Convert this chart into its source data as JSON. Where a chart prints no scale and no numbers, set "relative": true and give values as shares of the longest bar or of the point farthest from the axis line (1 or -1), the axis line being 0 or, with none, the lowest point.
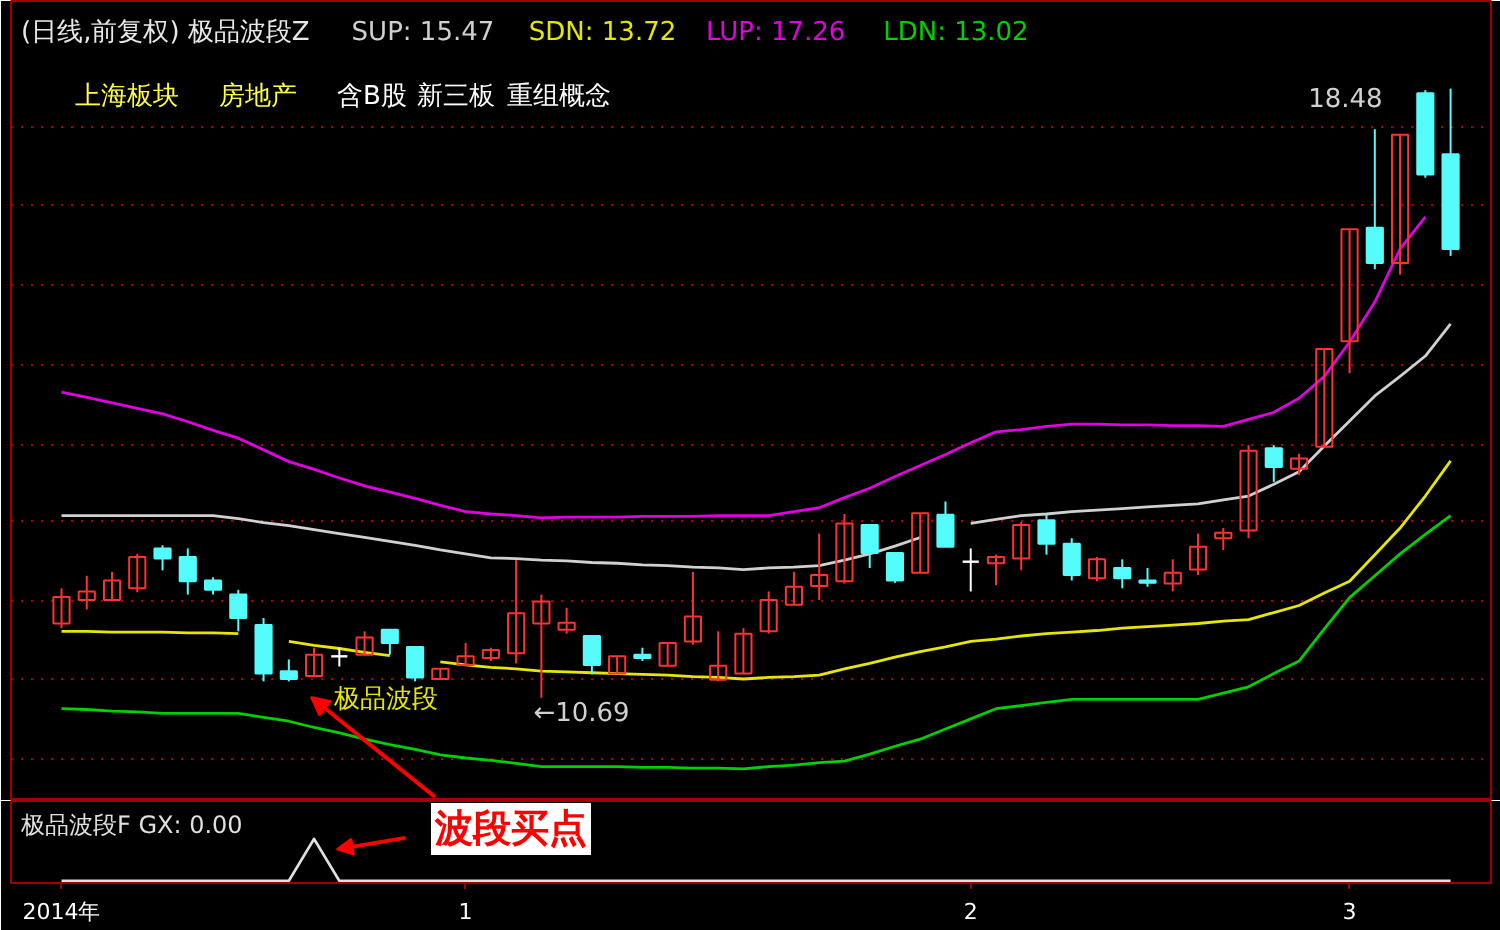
{
  "chart_data": [
    {
      "type": "candlestick",
      "title": "(日线,前复权) 极品波段Z",
      "categories": [
        null,
        null,
        null,
        null,
        null,
        null,
        null,
        null,
        null,
        null,
        null,
        null,
        null,
        null,
        null,
        null,
        null,
        null,
        null,
        null,
        null,
        null,
        null,
        null,
        null,
        null,
        null,
        null,
        null,
        null,
        null,
        null,
        null,
        null,
        null,
        null,
        null,
        null,
        null,
        null,
        null,
        null,
        null,
        null,
        null,
        null,
        null,
        null,
        null,
        null,
        null,
        null,
        null,
        null,
        null,
        null
      ],
      "ohlc": [
        [
          11.64,
          12.09,
          11.58,
          11.98
        ],
        [
          11.94,
          12.25,
          11.82,
          12.05
        ],
        [
          11.94,
          12.3,
          11.94,
          12.19
        ],
        [
          12.09,
          12.53,
          12.04,
          12.49
        ],
        [
          12.6,
          12.64,
          12.32,
          12.47
        ],
        [
          12.49,
          12.6,
          12.01,
          12.18
        ],
        [
          12.19,
          12.23,
          12.01,
          12.07
        ],
        [
          12.01,
          12.07,
          11.54,
          11.71
        ],
        [
          11.62,
          11.71,
          10.9,
          11.0
        ],
        [
          11.03,
          11.18,
          10.9,
          10.93
        ],
        [
          10.97,
          11.33,
          10.97,
          11.24
        ],
        [
          11.22,
          11.33,
          11.09,
          11.22
        ],
        [
          11.24,
          11.54,
          11.24,
          11.46
        ],
        [
          11.56,
          11.56,
          11.24,
          11.39
        ],
        [
          11.34,
          11.34,
          10.9,
          10.95
        ],
        [
          10.93,
          11.06,
          10.93,
          11.06
        ],
        [
          11.11,
          11.39,
          11.11,
          11.22
        ],
        [
          11.2,
          11.33,
          11.16,
          11.3
        ],
        [
          11.26,
          12.45,
          11.13,
          11.77
        ],
        [
          11.64,
          12.01,
          10.69,
          11.92
        ],
        [
          11.56,
          11.84,
          11.51,
          11.65
        ],
        [
          11.48,
          11.48,
          10.99,
          11.11
        ],
        [
          11.0,
          11.22,
          11.0,
          11.22
        ],
        [
          11.24,
          11.33,
          11.16,
          11.2
        ],
        [
          11.1,
          11.39,
          11.1,
          11.39
        ],
        [
          11.41,
          12.3,
          11.37,
          11.73
        ],
        [
          10.92,
          11.54,
          10.9,
          11.1
        ],
        [
          11.0,
          11.58,
          10.99,
          11.51
        ],
        [
          11.54,
          12.05,
          11.51,
          11.94
        ],
        [
          11.88,
          12.3,
          11.88,
          12.11
        ],
        [
          12.12,
          12.79,
          11.94,
          12.26
        ],
        [
          12.18,
          13.04,
          12.15,
          12.92
        ],
        [
          12.9,
          12.9,
          12.35,
          12.54
        ],
        [
          12.54,
          12.54,
          12.16,
          12.19
        ],
        [
          12.29,
          13.05,
          12.29,
          13.05
        ],
        [
          13.03,
          13.2,
          12.62,
          12.62
        ],
        [
          12.43,
          12.6,
          12.05,
          12.43
        ],
        [
          12.41,
          12.52,
          12.13,
          12.49
        ],
        [
          12.47,
          12.94,
          12.32,
          12.9
        ],
        [
          12.96,
          13.03,
          12.52,
          12.66
        ],
        [
          12.66,
          12.73,
          12.19,
          12.26
        ],
        [
          12.22,
          12.49,
          12.18,
          12.46
        ],
        [
          12.35,
          12.46,
          12.09,
          12.22
        ],
        [
          12.19,
          12.35,
          12.11,
          12.16
        ],
        [
          12.15,
          12.46,
          12.05,
          12.29
        ],
        [
          12.33,
          12.79,
          12.26,
          12.62
        ],
        [
          12.73,
          12.86,
          12.58,
          12.8
        ],
        [
          12.83,
          13.92,
          12.73,
          13.85
        ],
        [
          13.88,
          13.92,
          13.45,
          13.64
        ],
        [
          13.62,
          13.81,
          13.54,
          13.75
        ],
        [
          13.9,
          15.15,
          13.9,
          15.15
        ],
        [
          15.25,
          16.68,
          14.84,
          16.68
        ],
        [
          16.7,
          17.96,
          16.17,
          16.25
        ],
        [
          16.25,
          17.89,
          16.1,
          17.89
        ],
        [
          18.42,
          18.46,
          17.34,
          17.38
        ],
        [
          17.64,
          18.48,
          16.34,
          16.43
        ]
      ],
      "colors": [
        "#ff3232",
        "#ff3232",
        "#ff3232",
        "#ff3232",
        "#54fcfc",
        "#54fcfc",
        "#54fcfc",
        "#54fcfc",
        "#54fcfc",
        "#54fcfc",
        "#ff3232",
        "#ffffff",
        "#ff3232",
        "#54fcfc",
        "#54fcfc",
        "#ff3232",
        "#ff3232",
        "#ff3232",
        "#ff3232",
        "#ff3232",
        "#ff3232",
        "#54fcfc",
        "#ff3232",
        "#54fcfc",
        "#ff3232",
        "#ff3232",
        "#ff3232",
        "#ff3232",
        "#ff3232",
        "#ff3232",
        "#ff3232",
        "#ff3232",
        "#54fcfc",
        "#54fcfc",
        "#ff3232",
        "#54fcfc",
        "#ffffff",
        "#ff3232",
        "#ff3232",
        "#54fcfc",
        "#54fcfc",
        "#ff3232",
        "#54fcfc",
        "#54fcfc",
        "#ff3232",
        "#ff3232",
        "#ff3232",
        "#ff3232",
        "#54fcfc",
        "#ff3232",
        "#ff3232",
        "#ff3232",
        "#54fcfc",
        "#ff3232",
        "#54fcfc",
        "#54fcfc"
      ],
      "series": [
        {
          "name": "SUP: 15.47",
          "type": "line",
          "color": "#d0d0d0",
          "values": [
            13.02,
            13.02,
            13.02,
            13.02,
            13.02,
            13.02,
            13.02,
            12.98,
            12.93,
            12.89,
            12.84,
            12.79,
            12.74,
            12.69,
            12.64,
            12.58,
            12.53,
            12.48,
            12.47,
            12.45,
            12.44,
            12.42,
            12.41,
            12.39,
            12.38,
            12.36,
            12.35,
            12.33,
            12.35,
            12.36,
            12.38,
            12.45,
            12.53,
            12.63,
            12.74,
            null,
            12.92,
            12.97,
            13.02,
            13.04,
            13.07,
            13.09,
            13.11,
            13.13,
            13.15,
            13.17,
            13.22,
            13.27,
            13.42,
            13.58,
            13.91,
            14.23,
            14.55,
            14.8,
            15.06,
            15.47
          ]
        },
        {
          "name": "SDN: 13.72",
          "type": "line",
          "color": "#e6e600",
          "values": [
            11.54,
            11.54,
            11.53,
            11.53,
            11.53,
            11.52,
            11.52,
            11.51,
            null,
            11.41,
            11.36,
            11.32,
            11.27,
            11.23,
            null,
            11.15,
            11.11,
            11.08,
            11.06,
            11.03,
            11.02,
            11.01,
            11.0,
            10.99,
            10.98,
            10.96,
            10.95,
            10.93,
            10.95,
            10.96,
            10.98,
            11.06,
            11.13,
            11.21,
            11.28,
            11.34,
            11.41,
            11.44,
            11.48,
            11.51,
            11.53,
            11.55,
            11.58,
            11.6,
            11.62,
            11.64,
            11.67,
            11.69,
            11.78,
            11.87,
            12.03,
            12.18,
            12.52,
            12.86,
            13.27,
            13.72
          ]
        },
        {
          "name": "LUP: 17.26",
          "type": "line",
          "color": "#e000e0",
          "values": [
            14.6,
            14.53,
            14.46,
            14.39,
            14.32,
            14.22,
            14.11,
            14.01,
            13.86,
            13.71,
            13.61,
            13.5,
            13.4,
            13.32,
            13.24,
            13.15,
            13.07,
            13.04,
            13.02,
            12.99,
            13.0,
            13.0,
            13.0,
            13.01,
            13.01,
            13.01,
            13.02,
            13.02,
            13.02,
            13.07,
            13.12,
            13.25,
            13.37,
            13.52,
            13.66,
            13.8,
            13.95,
            14.09,
            14.12,
            14.16,
            14.19,
            14.19,
            14.18,
            14.18,
            14.17,
            14.17,
            14.16,
            14.25,
            14.34,
            14.52,
            14.8,
            15.24,
            15.75,
            16.43,
            16.84,
            null
          ]
        },
        {
          "name": "LDN: 13.02",
          "type": "line",
          "color": "#00d000",
          "values": [
            10.55,
            10.54,
            10.52,
            10.51,
            10.49,
            10.49,
            10.49,
            10.49,
            10.44,
            10.39,
            10.31,
            10.24,
            10.16,
            10.09,
            10.03,
            9.96,
            9.92,
            9.89,
            9.85,
            9.81,
            9.81,
            9.81,
            9.81,
            9.8,
            9.8,
            9.79,
            9.79,
            9.78,
            9.81,
            9.83,
            9.86,
            9.88,
            9.97,
            10.07,
            10.16,
            10.29,
            10.42,
            10.55,
            10.59,
            10.63,
            10.67,
            10.67,
            10.67,
            10.67,
            10.67,
            10.67,
            10.75,
            10.83,
            11.0,
            11.16,
            11.57,
            11.97,
            12.25,
            12.53,
            12.78,
            13.02
          ]
        }
      ],
      "legend": "top left",
      "ylim": [
        9.37,
        19.6
      ],
      "yticks": [
        {
          "value": 9.9,
          "label": null
        },
        {
          "value": 10.92,
          "label": null
        },
        {
          "value": 11.92,
          "label": null
        },
        {
          "value": 12.94,
          "label": null
        },
        {
          "value": 13.93,
          "label": null
        },
        {
          "value": 14.95,
          "label": null
        },
        {
          "value": 15.98,
          "label": null
        },
        {
          "value": 16.99,
          "label": null
        },
        {
          "value": 17.98,
          "label": null
        }
      ],
      "grid": "y",
      "tick_labels": false,
      "annotations": [
        "上海板块",
        "房地产",
        "含B股",
        "新三板",
        "重组概念",
        "18.48",
        "←10.69",
        "极品波段"
      ]
    },
    {
      "type": "line",
      "title": "极品波段F  GX: 0.00",
      "relative": true,
      "color": "#e0e0e0",
      "categories": [
        "2014年",
        null,
        null,
        null,
        null,
        null,
        null,
        null,
        null,
        null,
        null,
        null,
        null,
        null,
        null,
        null,
        "1",
        null,
        null,
        null,
        null,
        null,
        null,
        null,
        null,
        null,
        null,
        null,
        null,
        null,
        null,
        null,
        null,
        null,
        null,
        null,
        "2",
        null,
        null,
        null,
        null,
        null,
        null,
        null,
        null,
        null,
        null,
        null,
        null,
        null,
        null,
        "3",
        null,
        null,
        null,
        null
      ],
      "values": [
        0,
        0,
        0,
        0,
        0,
        0,
        0,
        0,
        0,
        0,
        1,
        0,
        0,
        0,
        0,
        0,
        0,
        0,
        0,
        0,
        0,
        0,
        0,
        0,
        0,
        0,
        0,
        0,
        0,
        0,
        0,
        0,
        0,
        0,
        0,
        0,
        0,
        0,
        0,
        0,
        0,
        0,
        0,
        0,
        0,
        0,
        0,
        0,
        0,
        0,
        0,
        0,
        0,
        0,
        0,
        0
      ],
      "tick_labels": "x",
      "annotations": [
        "波段买点"
      ]
    }
  ]
}
